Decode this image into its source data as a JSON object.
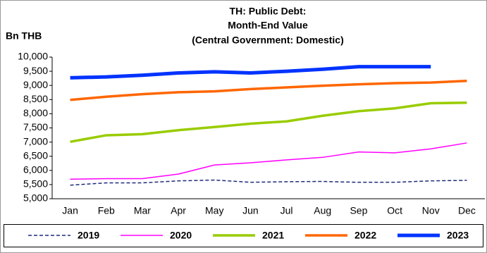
{
  "chart_data": {
    "type": "line",
    "title": [
      "TH: Public Debt:",
      "Month-End Value",
      "(Central Government: Domestic)"
    ],
    "y_label": "Bn THB",
    "categories": [
      "Jan",
      "Feb",
      "Mar",
      "Apr",
      "May",
      "Jun",
      "Jul",
      "Aug",
      "Sep",
      "Oct",
      "Nov",
      "Dec"
    ],
    "series": [
      {
        "name": "2019",
        "color": "#1f2a7a",
        "line_style": "dashed",
        "values": [
          5480,
          5560,
          5560,
          5630,
          5660,
          5580,
          5600,
          5610,
          5580,
          5580,
          5630,
          5650
        ]
      },
      {
        "name": "2020",
        "color": "#ff00ff",
        "values": [
          5690,
          5710,
          5710,
          5870,
          6190,
          6270,
          6370,
          6460,
          6650,
          6620,
          6760,
          6970
        ]
      },
      {
        "name": "2021",
        "color": "#99cc00",
        "values": [
          7010,
          7240,
          7280,
          7420,
          7530,
          7650,
          7730,
          7930,
          8090,
          8190,
          8370,
          8390
        ]
      },
      {
        "name": "2022",
        "color": "#ff6600",
        "values": [
          8490,
          8600,
          8690,
          8760,
          8790,
          8870,
          8930,
          8990,
          9040,
          9080,
          9100,
          9160
        ]
      },
      {
        "name": "2023",
        "color": "#0033ff",
        "values": [
          9270,
          9300,
          9360,
          9440,
          9480,
          9440,
          9500,
          9570,
          9660,
          9660,
          9660,
          null
        ]
      }
    ],
    "ylim": [
      5000,
      10000
    ],
    "yticks": [
      {
        "value": 5000,
        "label": "5,000"
      },
      {
        "value": 5500,
        "label": "5,500"
      },
      {
        "value": 6000,
        "label": "6,000"
      },
      {
        "value": 6500,
        "label": "6,500"
      },
      {
        "value": 7000,
        "label": "7,000"
      },
      {
        "value": 7500,
        "label": "7,500"
      },
      {
        "value": 8000,
        "label": "8,000"
      },
      {
        "value": 8500,
        "label": "8,500"
      },
      {
        "value": 9000,
        "label": "9,000"
      },
      {
        "value": 9500,
        "label": "9,500"
      },
      {
        "value": 10000,
        "label": "10,000"
      }
    ],
    "legend": "bottom"
  }
}
